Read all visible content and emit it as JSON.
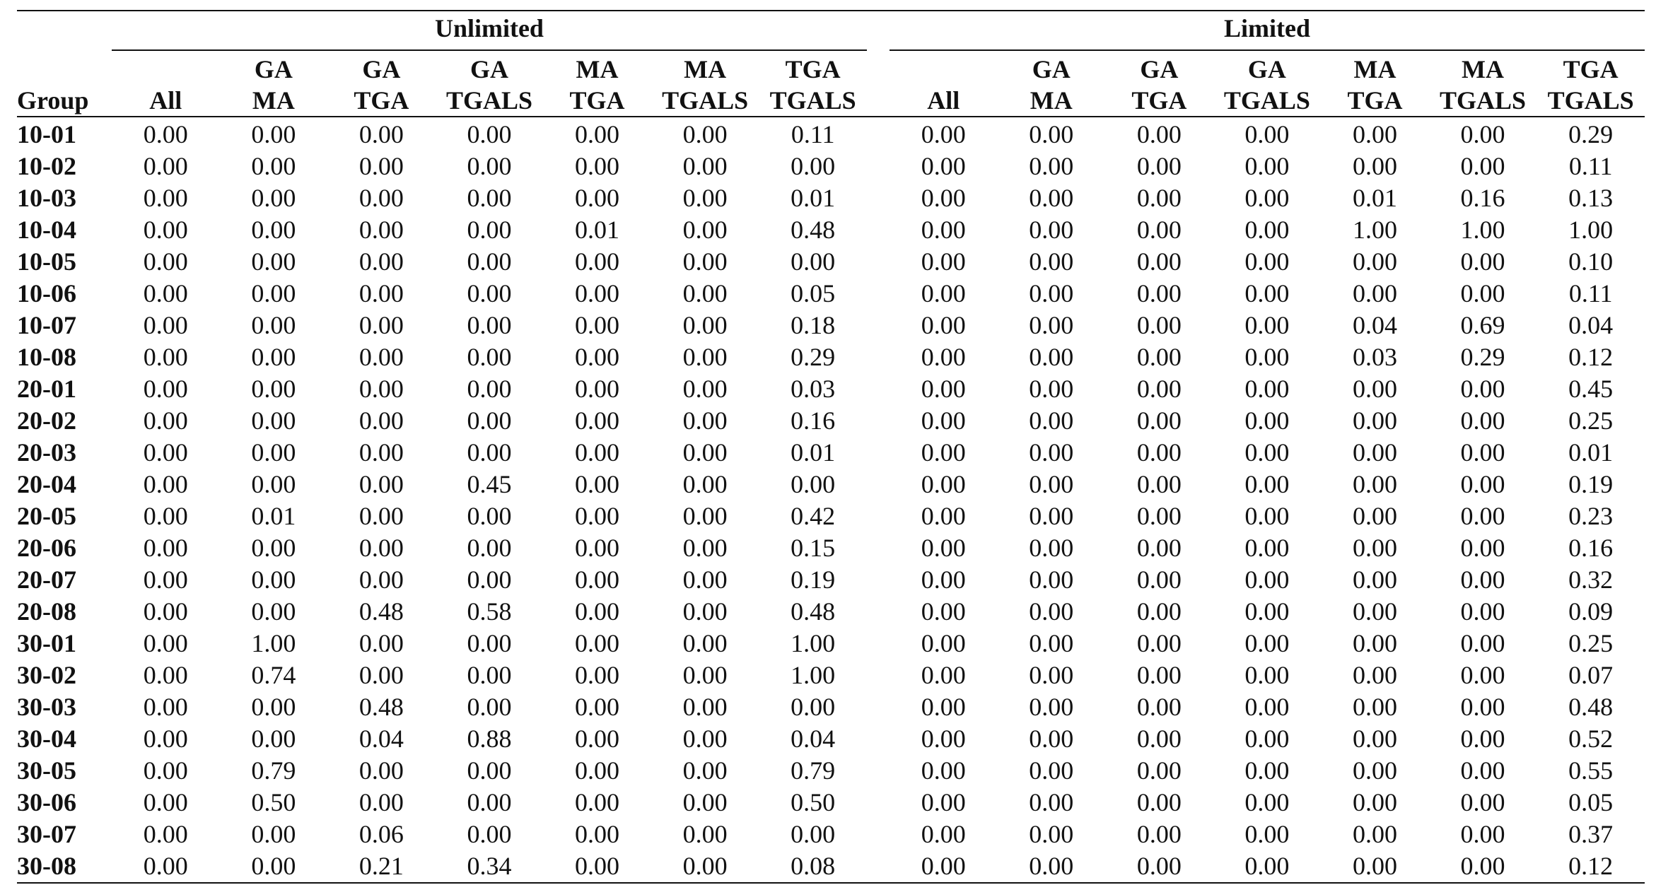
{
  "table": {
    "group_column_label": "Group",
    "sections": [
      {
        "label": "Unlimited"
      },
      {
        "label": "Limited"
      }
    ],
    "columns": [
      {
        "line1": "",
        "line2": "All"
      },
      {
        "line1": "GA",
        "line2": "MA"
      },
      {
        "line1": "GA",
        "line2": "TGA"
      },
      {
        "line1": "GA",
        "line2": "TGALS"
      },
      {
        "line1": "MA",
        "line2": "TGA"
      },
      {
        "line1": "MA",
        "line2": "TGALS"
      },
      {
        "line1": "TGA",
        "line2": "TGALS"
      }
    ],
    "rows": [
      {
        "group": "10-01",
        "unlimited": [
          "0.00",
          "0.00",
          "0.00",
          "0.00",
          "0.00",
          "0.00",
          "0.11"
        ],
        "limited": [
          "0.00",
          "0.00",
          "0.00",
          "0.00",
          "0.00",
          "0.00",
          "0.29"
        ]
      },
      {
        "group": "10-02",
        "unlimited": [
          "0.00",
          "0.00",
          "0.00",
          "0.00",
          "0.00",
          "0.00",
          "0.00"
        ],
        "limited": [
          "0.00",
          "0.00",
          "0.00",
          "0.00",
          "0.00",
          "0.00",
          "0.11"
        ]
      },
      {
        "group": "10-03",
        "unlimited": [
          "0.00",
          "0.00",
          "0.00",
          "0.00",
          "0.00",
          "0.00",
          "0.01"
        ],
        "limited": [
          "0.00",
          "0.00",
          "0.00",
          "0.00",
          "0.01",
          "0.16",
          "0.13"
        ]
      },
      {
        "group": "10-04",
        "unlimited": [
          "0.00",
          "0.00",
          "0.00",
          "0.00",
          "0.01",
          "0.00",
          "0.48"
        ],
        "limited": [
          "0.00",
          "0.00",
          "0.00",
          "0.00",
          "1.00",
          "1.00",
          "1.00"
        ]
      },
      {
        "group": "10-05",
        "unlimited": [
          "0.00",
          "0.00",
          "0.00",
          "0.00",
          "0.00",
          "0.00",
          "0.00"
        ],
        "limited": [
          "0.00",
          "0.00",
          "0.00",
          "0.00",
          "0.00",
          "0.00",
          "0.10"
        ]
      },
      {
        "group": "10-06",
        "unlimited": [
          "0.00",
          "0.00",
          "0.00",
          "0.00",
          "0.00",
          "0.00",
          "0.05"
        ],
        "limited": [
          "0.00",
          "0.00",
          "0.00",
          "0.00",
          "0.00",
          "0.00",
          "0.11"
        ]
      },
      {
        "group": "10-07",
        "unlimited": [
          "0.00",
          "0.00",
          "0.00",
          "0.00",
          "0.00",
          "0.00",
          "0.18"
        ],
        "limited": [
          "0.00",
          "0.00",
          "0.00",
          "0.00",
          "0.04",
          "0.69",
          "0.04"
        ]
      },
      {
        "group": "10-08",
        "unlimited": [
          "0.00",
          "0.00",
          "0.00",
          "0.00",
          "0.00",
          "0.00",
          "0.29"
        ],
        "limited": [
          "0.00",
          "0.00",
          "0.00",
          "0.00",
          "0.03",
          "0.29",
          "0.12"
        ]
      },
      {
        "group": "20-01",
        "unlimited": [
          "0.00",
          "0.00",
          "0.00",
          "0.00",
          "0.00",
          "0.00",
          "0.03"
        ],
        "limited": [
          "0.00",
          "0.00",
          "0.00",
          "0.00",
          "0.00",
          "0.00",
          "0.45"
        ]
      },
      {
        "group": "20-02",
        "unlimited": [
          "0.00",
          "0.00",
          "0.00",
          "0.00",
          "0.00",
          "0.00",
          "0.16"
        ],
        "limited": [
          "0.00",
          "0.00",
          "0.00",
          "0.00",
          "0.00",
          "0.00",
          "0.25"
        ]
      },
      {
        "group": "20-03",
        "unlimited": [
          "0.00",
          "0.00",
          "0.00",
          "0.00",
          "0.00",
          "0.00",
          "0.01"
        ],
        "limited": [
          "0.00",
          "0.00",
          "0.00",
          "0.00",
          "0.00",
          "0.00",
          "0.01"
        ]
      },
      {
        "group": "20-04",
        "unlimited": [
          "0.00",
          "0.00",
          "0.00",
          "0.45",
          "0.00",
          "0.00",
          "0.00"
        ],
        "limited": [
          "0.00",
          "0.00",
          "0.00",
          "0.00",
          "0.00",
          "0.00",
          "0.19"
        ]
      },
      {
        "group": "20-05",
        "unlimited": [
          "0.00",
          "0.01",
          "0.00",
          "0.00",
          "0.00",
          "0.00",
          "0.42"
        ],
        "limited": [
          "0.00",
          "0.00",
          "0.00",
          "0.00",
          "0.00",
          "0.00",
          "0.23"
        ]
      },
      {
        "group": "20-06",
        "unlimited": [
          "0.00",
          "0.00",
          "0.00",
          "0.00",
          "0.00",
          "0.00",
          "0.15"
        ],
        "limited": [
          "0.00",
          "0.00",
          "0.00",
          "0.00",
          "0.00",
          "0.00",
          "0.16"
        ]
      },
      {
        "group": "20-07",
        "unlimited": [
          "0.00",
          "0.00",
          "0.00",
          "0.00",
          "0.00",
          "0.00",
          "0.19"
        ],
        "limited": [
          "0.00",
          "0.00",
          "0.00",
          "0.00",
          "0.00",
          "0.00",
          "0.32"
        ]
      },
      {
        "group": "20-08",
        "unlimited": [
          "0.00",
          "0.00",
          "0.48",
          "0.58",
          "0.00",
          "0.00",
          "0.48"
        ],
        "limited": [
          "0.00",
          "0.00",
          "0.00",
          "0.00",
          "0.00",
          "0.00",
          "0.09"
        ]
      },
      {
        "group": "30-01",
        "unlimited": [
          "0.00",
          "1.00",
          "0.00",
          "0.00",
          "0.00",
          "0.00",
          "1.00"
        ],
        "limited": [
          "0.00",
          "0.00",
          "0.00",
          "0.00",
          "0.00",
          "0.00",
          "0.25"
        ]
      },
      {
        "group": "30-02",
        "unlimited": [
          "0.00",
          "0.74",
          "0.00",
          "0.00",
          "0.00",
          "0.00",
          "1.00"
        ],
        "limited": [
          "0.00",
          "0.00",
          "0.00",
          "0.00",
          "0.00",
          "0.00",
          "0.07"
        ]
      },
      {
        "group": "30-03",
        "unlimited": [
          "0.00",
          "0.00",
          "0.48",
          "0.00",
          "0.00",
          "0.00",
          "0.00"
        ],
        "limited": [
          "0.00",
          "0.00",
          "0.00",
          "0.00",
          "0.00",
          "0.00",
          "0.48"
        ]
      },
      {
        "group": "30-04",
        "unlimited": [
          "0.00",
          "0.00",
          "0.04",
          "0.88",
          "0.00",
          "0.00",
          "0.04"
        ],
        "limited": [
          "0.00",
          "0.00",
          "0.00",
          "0.00",
          "0.00",
          "0.00",
          "0.52"
        ]
      },
      {
        "group": "30-05",
        "unlimited": [
          "0.00",
          "0.79",
          "0.00",
          "0.00",
          "0.00",
          "0.00",
          "0.79"
        ],
        "limited": [
          "0.00",
          "0.00",
          "0.00",
          "0.00",
          "0.00",
          "0.00",
          "0.55"
        ]
      },
      {
        "group": "30-06",
        "unlimited": [
          "0.00",
          "0.50",
          "0.00",
          "0.00",
          "0.00",
          "0.00",
          "0.50"
        ],
        "limited": [
          "0.00",
          "0.00",
          "0.00",
          "0.00",
          "0.00",
          "0.00",
          "0.05"
        ]
      },
      {
        "group": "30-07",
        "unlimited": [
          "0.00",
          "0.00",
          "0.06",
          "0.00",
          "0.00",
          "0.00",
          "0.00"
        ],
        "limited": [
          "0.00",
          "0.00",
          "0.00",
          "0.00",
          "0.00",
          "0.00",
          "0.37"
        ]
      },
      {
        "group": "30-08",
        "unlimited": [
          "0.00",
          "0.00",
          "0.21",
          "0.34",
          "0.00",
          "0.00",
          "0.08"
        ],
        "limited": [
          "0.00",
          "0.00",
          "0.00",
          "0.00",
          "0.00",
          "0.00",
          "0.12"
        ]
      }
    ]
  }
}
